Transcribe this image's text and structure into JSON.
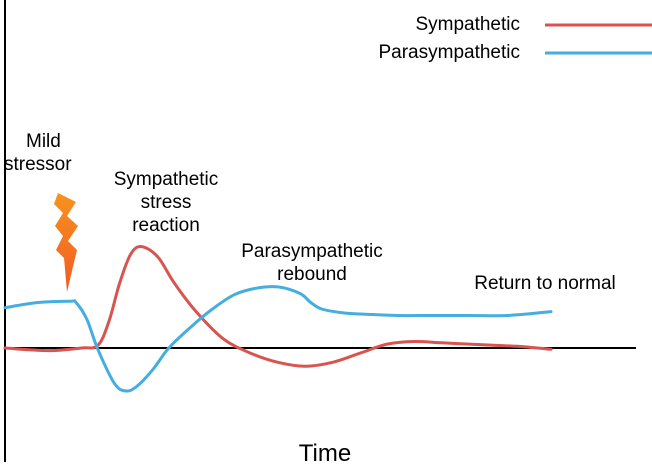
{
  "chart_data": {
    "type": "line",
    "title": "",
    "xlabel": "Time",
    "ylabel": "",
    "xlim": [
      0,
      100
    ],
    "ylim": [
      -1,
      1
    ],
    "grid": false,
    "legend": "top-right",
    "series": [
      {
        "name": "Sympathetic",
        "color": "#d9534f",
        "x": [
          0,
          8,
          14,
          17,
          19,
          21,
          23,
          25,
          28,
          31,
          35,
          40,
          45,
          50,
          55,
          60,
          65,
          70,
          75,
          80,
          85,
          90,
          95,
          100
        ],
        "y": [
          0.0,
          -0.02,
          0.0,
          0.02,
          0.2,
          0.5,
          0.72,
          0.78,
          0.7,
          0.5,
          0.28,
          0.07,
          -0.04,
          -0.11,
          -0.14,
          -0.11,
          -0.04,
          0.03,
          0.05,
          0.04,
          0.03,
          0.02,
          0.01,
          -0.01
        ]
      },
      {
        "name": "Parasympathetic",
        "color": "#45ade0",
        "x": [
          0,
          6,
          12,
          13,
          15,
          17,
          20,
          22,
          24,
          27,
          30,
          34,
          38,
          42,
          46,
          50,
          54,
          56,
          58,
          62,
          66,
          72,
          78,
          85,
          92,
          100
        ],
        "y": [
          0.31,
          0.35,
          0.36,
          0.35,
          0.22,
          -0.01,
          -0.27,
          -0.33,
          -0.3,
          -0.17,
          0.0,
          0.16,
          0.3,
          0.41,
          0.46,
          0.47,
          0.42,
          0.35,
          0.3,
          0.27,
          0.26,
          0.25,
          0.25,
          0.25,
          0.25,
          0.28
        ]
      }
    ],
    "annotations": [
      {
        "id": "mild-stressor",
        "lines": [
          "Mild",
          "stressor"
        ]
      },
      {
        "id": "sympathetic-stress-reaction",
        "lines": [
          "Sympathetic",
          "stress",
          "reaction"
        ]
      },
      {
        "id": "parasympathetic-rebound",
        "lines": [
          "Parasympathetic",
          "rebound"
        ]
      },
      {
        "id": "return-to-normal",
        "lines": [
          "Return to normal"
        ]
      }
    ],
    "stressor_icon": {
      "name": "lightning-bolt-icon",
      "color": "#f7931e",
      "color_dark": "#f15a24"
    }
  }
}
